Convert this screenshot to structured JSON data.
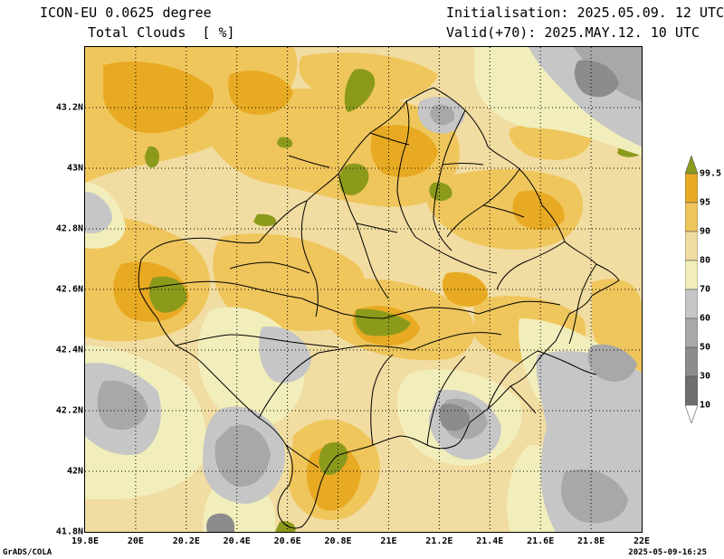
{
  "header": {
    "model_title": "ICON-EU 0.0625 degree",
    "field_title": "Total Clouds  [ %]",
    "init_label": "Initialisation: 2025.05.09. 12 UTC",
    "valid_label": "Valid(+70): 2025.MAY.12. 10 UTC"
  },
  "map": {
    "lon_range": [
      19.8,
      22.0
    ],
    "lat_range": [
      41.8,
      43.4
    ],
    "x_tick_labels": [
      "19.8E",
      "20E",
      "20.2E",
      "20.4E",
      "20.6E",
      "20.8E",
      "21E",
      "21.2E",
      "21.4E",
      "21.6E",
      "21.8E",
      "22E"
    ],
    "y_tick_labels": [
      "41.8N",
      "42N",
      "42.2N",
      "42.4N",
      "42.6N",
      "42.8N",
      "43N",
      "43.2N"
    ],
    "grid": "dotted"
  },
  "colorbar": {
    "levels": [
      "10",
      "30",
      "50",
      "60",
      "70",
      "80",
      "90",
      "95",
      "99.5"
    ],
    "colors": [
      "#ffffff",
      "#6e6e6e",
      "#8c8c8c",
      "#a8a8a8",
      "#c6c6c6",
      "#f2eebb",
      "#f1dca1",
      "#efc65c",
      "#e8aa22",
      "#8c9a1c"
    ]
  },
  "footer": {
    "left": "GrADS/COLA",
    "right": "2025-05-09-16:25"
  }
}
